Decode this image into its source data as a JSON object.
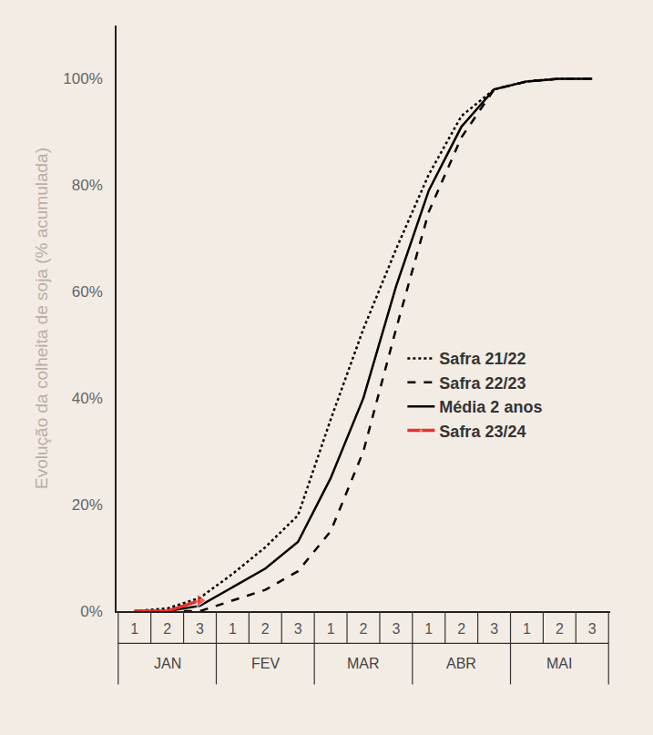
{
  "chart_data": {
    "type": "line",
    "y_label": "Evolução da colheita de soja (% acumulada)",
    "categories": [
      "1",
      "2",
      "3",
      "1",
      "2",
      "3",
      "1",
      "2",
      "3",
      "1",
      "2",
      "3",
      "1",
      "2",
      "3"
    ],
    "months": [
      "JAN",
      "FEV",
      "MAR",
      "ABR",
      "MAI"
    ],
    "ylim": [
      0,
      110
    ],
    "yticks": [
      {
        "value": 0,
        "label": "0%"
      },
      {
        "value": 20,
        "label": "20%"
      },
      {
        "value": 40,
        "label": "40%"
      },
      {
        "value": 60,
        "label": "60%"
      },
      {
        "value": 80,
        "label": "80%"
      },
      {
        "value": 100,
        "label": "100%"
      }
    ],
    "grid": false,
    "legend": "right",
    "series": [
      {
        "name": "Safra 21/22",
        "color": "#000000",
        "line_style": "dot",
        "values": [
          0,
          0.5,
          2.5,
          7,
          12,
          18,
          36,
          53,
          68,
          82,
          93,
          98,
          99.5,
          100,
          100
        ]
      },
      {
        "name": "Safra 22/23",
        "color": "#000000",
        "line_style": "dash",
        "values": [
          0,
          0,
          0,
          2,
          4,
          7.5,
          15,
          30,
          53,
          75,
          89,
          98,
          99.5,
          100,
          100
        ]
      },
      {
        "name": "Média 2 anos",
        "color": "#000000",
        "line_style": "solid",
        "values": [
          0,
          0,
          1,
          4.5,
          8,
          13,
          25,
          40,
          61,
          79,
          91,
          98,
          99.5,
          100,
          100
        ]
      },
      {
        "name": "Safra 23/24",
        "color": "#e8302a",
        "line_style": "arrow",
        "values": [
          0,
          0,
          2,
          null,
          null,
          null,
          null,
          null,
          null,
          null,
          null,
          null,
          null,
          null,
          null
        ]
      }
    ]
  }
}
